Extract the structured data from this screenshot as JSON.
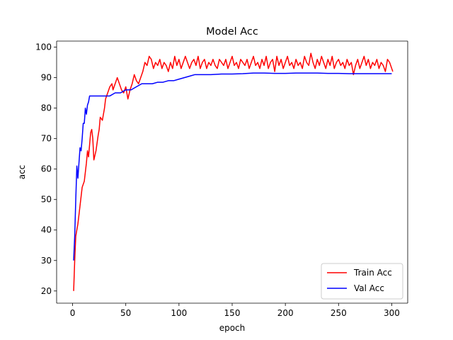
{
  "chart_data": {
    "type": "line",
    "title": "Model Acc",
    "xlabel": "epoch",
    "ylabel": "acc",
    "xlim": [
      -15,
      315
    ],
    "ylim": [
      16,
      102
    ],
    "xticks": [
      0,
      50,
      100,
      150,
      200,
      250,
      300
    ],
    "xtick_labels": [
      "0",
      "50",
      "100",
      "150",
      "200",
      "250",
      "300"
    ],
    "yticks": [
      20,
      30,
      40,
      50,
      60,
      70,
      80,
      90,
      100
    ],
    "ytick_labels": [
      "20",
      "30",
      "40",
      "50",
      "60",
      "70",
      "80",
      "90",
      "100"
    ],
    "grid": false,
    "legend_position": "lower-right",
    "series": [
      {
        "name": "Train Acc",
        "color": "#ff0000",
        "points": [
          [
            1,
            20
          ],
          [
            2,
            30
          ],
          [
            3,
            38
          ],
          [
            5,
            42
          ],
          [
            7,
            48
          ],
          [
            9,
            54
          ],
          [
            11,
            56
          ],
          [
            13,
            62
          ],
          [
            14,
            66
          ],
          [
            15,
            64
          ],
          [
            16,
            68
          ],
          [
            17,
            72
          ],
          [
            18,
            73
          ],
          [
            19,
            70
          ],
          [
            20,
            63
          ],
          [
            22,
            66
          ],
          [
            24,
            71
          ],
          [
            25,
            73
          ],
          [
            26,
            77
          ],
          [
            28,
            76
          ],
          [
            30,
            80
          ],
          [
            31,
            83
          ],
          [
            33,
            85
          ],
          [
            35,
            87
          ],
          [
            37,
            88
          ],
          [
            38,
            86
          ],
          [
            40,
            88
          ],
          [
            42,
            90
          ],
          [
            44,
            88
          ],
          [
            46,
            86
          ],
          [
            48,
            85
          ],
          [
            50,
            87
          ],
          [
            52,
            83
          ],
          [
            54,
            86
          ],
          [
            56,
            88
          ],
          [
            58,
            91
          ],
          [
            60,
            89
          ],
          [
            62,
            88
          ],
          [
            64,
            90
          ],
          [
            66,
            92
          ],
          [
            68,
            95
          ],
          [
            70,
            94
          ],
          [
            72,
            97
          ],
          [
            74,
            96
          ],
          [
            76,
            93
          ],
          [
            78,
            95
          ],
          [
            80,
            94
          ],
          [
            82,
            96
          ],
          [
            84,
            93
          ],
          [
            86,
            95
          ],
          [
            88,
            94
          ],
          [
            90,
            92
          ],
          [
            92,
            95
          ],
          [
            94,
            93
          ],
          [
            96,
            97
          ],
          [
            98,
            94
          ],
          [
            100,
            96
          ],
          [
            102,
            93
          ],
          [
            104,
            95
          ],
          [
            106,
            97
          ],
          [
            108,
            95
          ],
          [
            110,
            93
          ],
          [
            112,
            95
          ],
          [
            114,
            96
          ],
          [
            116,
            94
          ],
          [
            118,
            97
          ],
          [
            120,
            93
          ],
          [
            122,
            95
          ],
          [
            124,
            96
          ],
          [
            126,
            93
          ],
          [
            128,
            95
          ],
          [
            130,
            94
          ],
          [
            132,
            96
          ],
          [
            134,
            94
          ],
          [
            136,
            93
          ],
          [
            138,
            96
          ],
          [
            140,
            95
          ],
          [
            142,
            94
          ],
          [
            144,
            96
          ],
          [
            146,
            93
          ],
          [
            148,
            95
          ],
          [
            150,
            97
          ],
          [
            152,
            94
          ],
          [
            154,
            95
          ],
          [
            156,
            93
          ],
          [
            158,
            96
          ],
          [
            160,
            95
          ],
          [
            162,
            94
          ],
          [
            164,
            96
          ],
          [
            166,
            93
          ],
          [
            168,
            95
          ],
          [
            170,
            97
          ],
          [
            172,
            94
          ],
          [
            174,
            95
          ],
          [
            176,
            93
          ],
          [
            178,
            96
          ],
          [
            180,
            94
          ],
          [
            182,
            97
          ],
          [
            184,
            93
          ],
          [
            186,
            95
          ],
          [
            188,
            96
          ],
          [
            190,
            92
          ],
          [
            192,
            97
          ],
          [
            194,
            94
          ],
          [
            196,
            96
          ],
          [
            198,
            93
          ],
          [
            200,
            95
          ],
          [
            202,
            97
          ],
          [
            204,
            94
          ],
          [
            206,
            95
          ],
          [
            208,
            93
          ],
          [
            210,
            96
          ],
          [
            212,
            94
          ],
          [
            214,
            95
          ],
          [
            216,
            93
          ],
          [
            218,
            97
          ],
          [
            220,
            95
          ],
          [
            222,
            94
          ],
          [
            224,
            98
          ],
          [
            226,
            95
          ],
          [
            228,
            93
          ],
          [
            230,
            96
          ],
          [
            232,
            94
          ],
          [
            234,
            97
          ],
          [
            236,
            95
          ],
          [
            238,
            93
          ],
          [
            240,
            96
          ],
          [
            242,
            94
          ],
          [
            244,
            97
          ],
          [
            246,
            93
          ],
          [
            248,
            95
          ],
          [
            250,
            96
          ],
          [
            252,
            94
          ],
          [
            254,
            95
          ],
          [
            256,
            93
          ],
          [
            258,
            96
          ],
          [
            260,
            94
          ],
          [
            262,
            95
          ],
          [
            264,
            91
          ],
          [
            266,
            94
          ],
          [
            268,
            96
          ],
          [
            270,
            93
          ],
          [
            272,
            95
          ],
          [
            274,
            97
          ],
          [
            276,
            94
          ],
          [
            278,
            96
          ],
          [
            280,
            93
          ],
          [
            282,
            95
          ],
          [
            284,
            94
          ],
          [
            286,
            96
          ],
          [
            288,
            93
          ],
          [
            290,
            95
          ],
          [
            292,
            94
          ],
          [
            294,
            92
          ],
          [
            296,
            96
          ],
          [
            298,
            95
          ],
          [
            300,
            93
          ],
          [
            301,
            92
          ]
        ]
      },
      {
        "name": "Val Acc",
        "color": "#0000ff",
        "points": [
          [
            1,
            30
          ],
          [
            2,
            38
          ],
          [
            3,
            50
          ],
          [
            4,
            61
          ],
          [
            5,
            57
          ],
          [
            6,
            62
          ],
          [
            7,
            67
          ],
          [
            8,
            66
          ],
          [
            9,
            70
          ],
          [
            10,
            75
          ],
          [
            11,
            75
          ],
          [
            12,
            80
          ],
          [
            13,
            78
          ],
          [
            14,
            81
          ],
          [
            15,
            82
          ],
          [
            16,
            84
          ],
          [
            18,
            84
          ],
          [
            20,
            84
          ],
          [
            25,
            84
          ],
          [
            30,
            84
          ],
          [
            35,
            84
          ],
          [
            40,
            85
          ],
          [
            45,
            85
          ],
          [
            50,
            86
          ],
          [
            55,
            86
          ],
          [
            60,
            87
          ],
          [
            65,
            88
          ],
          [
            70,
            88
          ],
          [
            75,
            88
          ],
          [
            80,
            88.5
          ],
          [
            85,
            88.5
          ],
          [
            90,
            89
          ],
          [
            95,
            89
          ],
          [
            100,
            89.5
          ],
          [
            105,
            90
          ],
          [
            110,
            90.5
          ],
          [
            115,
            91
          ],
          [
            120,
            91
          ],
          [
            130,
            91
          ],
          [
            140,
            91.2
          ],
          [
            150,
            91.2
          ],
          [
            160,
            91.3
          ],
          [
            170,
            91.5
          ],
          [
            180,
            91.5
          ],
          [
            190,
            91.4
          ],
          [
            200,
            91.4
          ],
          [
            210,
            91.5
          ],
          [
            220,
            91.5
          ],
          [
            230,
            91.5
          ],
          [
            240,
            91.4
          ],
          [
            250,
            91.4
          ],
          [
            260,
            91.3
          ],
          [
            270,
            91.3
          ],
          [
            280,
            91.3
          ],
          [
            290,
            91.3
          ],
          [
            300,
            91.3
          ]
        ]
      }
    ]
  }
}
